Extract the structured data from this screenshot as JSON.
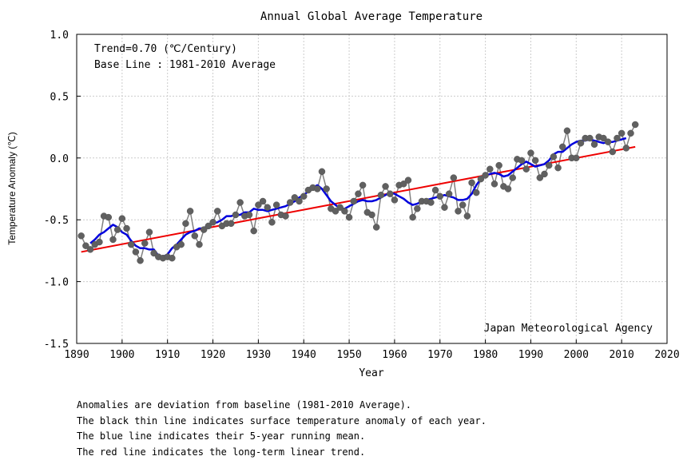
{
  "chart_data": {
    "type": "line",
    "title": "Annual Global Average Temperature",
    "xlabel": "Year",
    "ylabel": "Temperature Anomaly (℃)",
    "xlim": [
      1890,
      2020
    ],
    "ylim": [
      -1.5,
      1.0
    ],
    "xticks": [
      1890,
      1900,
      1910,
      1920,
      1930,
      1940,
      1950,
      1960,
      1970,
      1980,
      1990,
      2000,
      2010,
      2020
    ],
    "yticks": [
      1.0,
      0.5,
      0.0,
      -0.5,
      -1.0,
      -1.5
    ],
    "ytick_labels": [
      "1.0",
      "0.5",
      "0.0",
      "-0.5",
      "-1.0",
      "-1.5"
    ],
    "grid": true,
    "annotations": [
      "Trend=0.70 (℃/Century)",
      "Base Line : 1981-2010 Average"
    ],
    "source": "Japan Meteorological Agency",
    "colors": {
      "annual": "#808080",
      "annual_marker": "#606060",
      "running_mean": "#0000dd",
      "trend": "#ee0000",
      "grid": "#cccccc"
    },
    "x": [
      1891,
      1892,
      1893,
      1894,
      1895,
      1896,
      1897,
      1898,
      1899,
      1900,
      1901,
      1902,
      1903,
      1904,
      1905,
      1906,
      1907,
      1908,
      1909,
      1910,
      1911,
      1912,
      1913,
      1914,
      1915,
      1916,
      1917,
      1918,
      1919,
      1920,
      1921,
      1922,
      1923,
      1924,
      1925,
      1926,
      1927,
      1928,
      1929,
      1930,
      1931,
      1932,
      1933,
      1934,
      1935,
      1936,
      1937,
      1938,
      1939,
      1940,
      1941,
      1942,
      1943,
      1944,
      1945,
      1946,
      1947,
      1948,
      1949,
      1950,
      1951,
      1952,
      1953,
      1954,
      1955,
      1956,
      1957,
      1958,
      1959,
      1960,
      1961,
      1962,
      1963,
      1964,
      1965,
      1966,
      1967,
      1968,
      1969,
      1970,
      1971,
      1972,
      1973,
      1974,
      1975,
      1976,
      1977,
      1978,
      1979,
      1980,
      1981,
      1982,
      1983,
      1984,
      1985,
      1986,
      1987,
      1988,
      1989,
      1990,
      1991,
      1992,
      1993,
      1994,
      1995,
      1996,
      1997,
      1998,
      1999,
      2000,
      2001,
      2002,
      2003,
      2004,
      2005,
      2006,
      2007,
      2008,
      2009,
      2010,
      2011,
      2012,
      2013
    ],
    "series": [
      {
        "values": [
          -0.63,
          -0.71,
          -0.74,
          -0.7,
          -0.68,
          -0.47,
          -0.48,
          -0.66,
          -0.58,
          -0.49,
          -0.57,
          -0.7,
          -0.76,
          -0.83,
          -0.69,
          -0.6,
          -0.77,
          -0.8,
          -0.81,
          -0.8,
          -0.81,
          -0.72,
          -0.7,
          -0.53,
          -0.43,
          -0.63,
          -0.7,
          -0.58,
          -0.55,
          -0.52,
          -0.43,
          -0.55,
          -0.53,
          -0.53,
          -0.46,
          -0.36,
          -0.47,
          -0.46,
          -0.59,
          -0.38,
          -0.35,
          -0.4,
          -0.52,
          -0.38,
          -0.46,
          -0.47,
          -0.36,
          -0.32,
          -0.35,
          -0.31,
          -0.26,
          -0.24,
          -0.25,
          -0.11,
          -0.25,
          -0.41,
          -0.43,
          -0.4,
          -0.43,
          -0.48,
          -0.35,
          -0.29,
          -0.22,
          -0.44,
          -0.46,
          -0.56,
          -0.3,
          -0.23,
          -0.29,
          -0.34,
          -0.22,
          -0.21,
          -0.18,
          -0.48,
          -0.41,
          -0.35,
          -0.35,
          -0.36,
          -0.26,
          -0.31,
          -0.4,
          -0.29,
          -0.16,
          -0.43,
          -0.38,
          -0.47,
          -0.2,
          -0.28,
          -0.17,
          -0.14,
          -0.09,
          -0.21,
          -0.06,
          -0.23,
          -0.25,
          -0.16,
          -0.01,
          -0.02,
          -0.09,
          0.04,
          -0.02,
          -0.16,
          -0.13,
          -0.06,
          0.01,
          -0.08,
          0.09,
          0.22,
          0.0,
          0.0,
          0.12,
          0.16,
          0.16,
          0.11,
          0.17,
          0.16,
          0.13,
          0.05,
          0.16,
          0.2,
          0.08,
          0.2,
          0.27
        ]
      },
      {
        "x": [
          1893,
          1894,
          1895,
          1896,
          1897,
          1898,
          1899,
          1900,
          1901,
          1902,
          1903,
          1904,
          1905,
          1906,
          1907,
          1908,
          1909,
          1910,
          1911,
          1912,
          1913,
          1914,
          1915,
          1916,
          1917,
          1918,
          1919,
          1920,
          1921,
          1922,
          1923,
          1924,
          1925,
          1926,
          1927,
          1928,
          1929,
          1930,
          1931,
          1932,
          1933,
          1934,
          1935,
          1936,
          1937,
          1938,
          1939,
          1940,
          1941,
          1942,
          1943,
          1944,
          1945,
          1946,
          1947,
          1948,
          1949,
          1950,
          1951,
          1952,
          1953,
          1954,
          1955,
          1956,
          1957,
          1958,
          1959,
          1960,
          1961,
          1962,
          1963,
          1964,
          1965,
          1966,
          1967,
          1968,
          1969,
          1970,
          1971,
          1972,
          1973,
          1974,
          1975,
          1976,
          1977,
          1978,
          1979,
          1980,
          1981,
          1982,
          1983,
          1984,
          1985,
          1986,
          1987,
          1988,
          1989,
          1990,
          1991,
          1992,
          1993,
          1994,
          1995,
          1996,
          1997,
          1998,
          1999,
          2000,
          2001,
          2002,
          2003,
          2004,
          2005,
          2006,
          2007,
          2008,
          2009,
          2010,
          2011
        ],
        "values": [
          -0.69,
          -0.66,
          -0.62,
          -0.6,
          -0.57,
          -0.54,
          -0.56,
          -0.6,
          -0.62,
          -0.67,
          -0.71,
          -0.73,
          -0.73,
          -0.74,
          -0.74,
          -0.79,
          -0.8,
          -0.78,
          -0.73,
          -0.7,
          -0.66,
          -0.62,
          -0.6,
          -0.59,
          -0.57,
          -0.57,
          -0.54,
          -0.53,
          -0.52,
          -0.5,
          -0.47,
          -0.47,
          -0.46,
          -0.46,
          -0.44,
          -0.44,
          -0.41,
          -0.42,
          -0.42,
          -0.43,
          -0.42,
          -0.41,
          -0.4,
          -0.39,
          -0.37,
          -0.35,
          -0.32,
          -0.3,
          -0.27,
          -0.24,
          -0.22,
          -0.25,
          -0.3,
          -0.35,
          -0.38,
          -0.41,
          -0.41,
          -0.39,
          -0.37,
          -0.35,
          -0.34,
          -0.35,
          -0.35,
          -0.34,
          -0.32,
          -0.3,
          -0.28,
          -0.29,
          -0.31,
          -0.33,
          -0.36,
          -0.38,
          -0.37,
          -0.35,
          -0.34,
          -0.33,
          -0.32,
          -0.31,
          -0.3,
          -0.31,
          -0.32,
          -0.34,
          -0.34,
          -0.33,
          -0.29,
          -0.22,
          -0.17,
          -0.14,
          -0.13,
          -0.12,
          -0.13,
          -0.15,
          -0.14,
          -0.11,
          -0.08,
          -0.05,
          -0.03,
          -0.05,
          -0.07,
          -0.06,
          -0.05,
          -0.02,
          0.03,
          0.05,
          0.05,
          0.08,
          0.11,
          0.13,
          0.14,
          0.14,
          0.15,
          0.14,
          0.13,
          0.12,
          0.13,
          0.13,
          0.14,
          0.15,
          0.16
        ]
      },
      {
        "x": [
          1891,
          2013
        ],
        "values": [
          -0.76,
          0.09
        ]
      }
    ]
  },
  "notes": {
    "line1": "Anomalies are deviation from baseline (1981-2010 Average).",
    "line2": "The black thin line indicates surface temperature anomaly of each year.",
    "line3": "The blue line indicates their 5-year running mean.",
    "line4": "The red line indicates the long-term linear trend."
  }
}
